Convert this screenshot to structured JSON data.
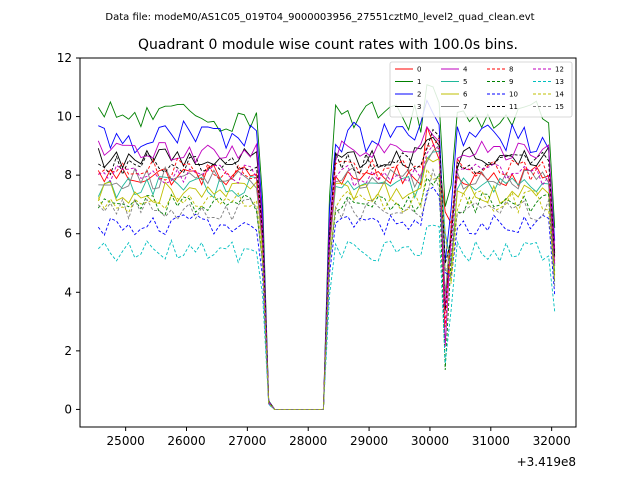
{
  "suptitle": "Data file: modeM0/AS1C05_019T04_9000003956_27551cztM0_level2_quad_clean.evt",
  "chart_data": {
    "type": "line",
    "title": "Quadrant 0 module wise count rates with 100.0s bins.",
    "xlabel": "",
    "ylabel": "",
    "offset_text": "+3.419e8",
    "xlim": [
      24250,
      32400
    ],
    "ylim": [
      -0.6,
      12.0
    ],
    "xticks": [
      25000,
      26000,
      27000,
      28000,
      29000,
      30000,
      31000,
      32000
    ],
    "xtick_labels": [
      "25000",
      "26000",
      "27000",
      "28000",
      "29000",
      "30000",
      "31000",
      "32000"
    ],
    "yticks": [
      0,
      2,
      4,
      6,
      8,
      10,
      12
    ],
    "ytick_labels": [
      "0",
      "2",
      "4",
      "6",
      "8",
      "10",
      "12"
    ],
    "legend_position": "top-right",
    "time_grid": {
      "start": 24550,
      "step": 100,
      "count": 76
    },
    "series": [
      {
        "name": "0",
        "color": "#ff0000",
        "dash": "solid",
        "base": 8.0
      },
      {
        "name": "1",
        "color": "#008000",
        "dash": "solid",
        "base": 10.0
      },
      {
        "name": "2",
        "color": "#0000ff",
        "dash": "solid",
        "base": 9.3
      },
      {
        "name": "3",
        "color": "#000000",
        "dash": "solid",
        "base": 8.6
      },
      {
        "name": "4",
        "color": "#bf00bf",
        "dash": "solid",
        "base": 8.8
      },
      {
        "name": "5",
        "color": "#1fb89a",
        "dash": "solid",
        "base": 7.6
      },
      {
        "name": "6",
        "color": "#bfbf00",
        "dash": "solid",
        "base": 7.4
      },
      {
        "name": "7",
        "color": "#7f7f7f",
        "dash": "solid",
        "base": 7.9
      },
      {
        "name": "8",
        "color": "#ff0000",
        "dash": "dashed",
        "base": 8.2
      },
      {
        "name": "9",
        "color": "#008000",
        "dash": "dashed",
        "base": 7.0
      },
      {
        "name": "10",
        "color": "#0000ff",
        "dash": "dashed",
        "base": 6.3
      },
      {
        "name": "11",
        "color": "#000000",
        "dash": "dashed",
        "base": 8.4
      },
      {
        "name": "12",
        "color": "#bf00bf",
        "dash": "dashed",
        "base": 8.0
      },
      {
        "name": "13",
        "color": "#00bfbf",
        "dash": "dashed",
        "base": 5.4
      },
      {
        "name": "14",
        "color": "#bfbf00",
        "dash": "dashed",
        "base": 7.1
      },
      {
        "name": "15",
        "color": "#7f7f7f",
        "dash": "dashed",
        "base": 6.8
      }
    ]
  }
}
